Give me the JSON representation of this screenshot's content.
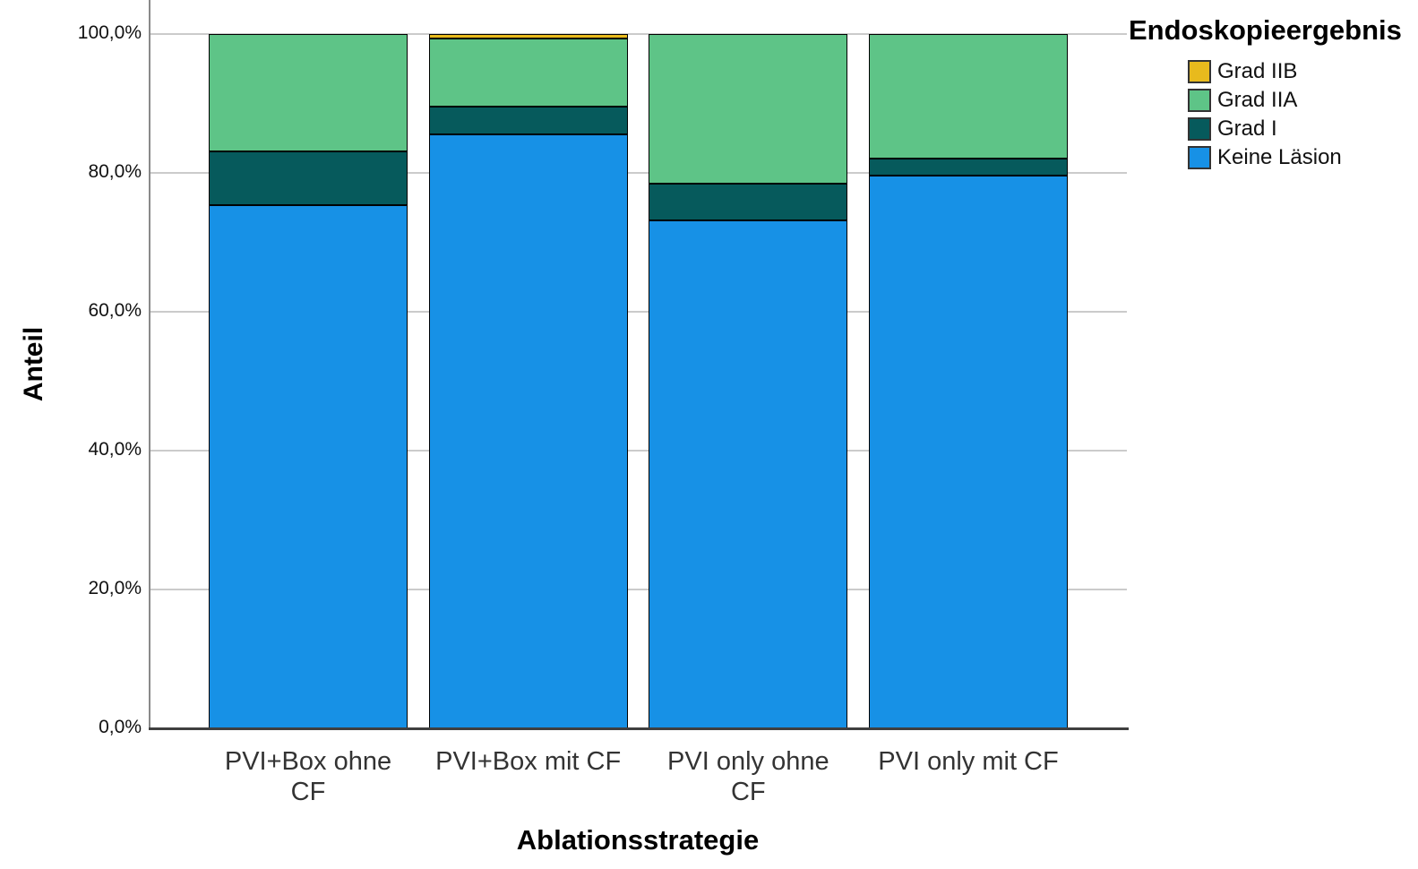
{
  "chart_data": {
    "type": "bar",
    "stacked": true,
    "title": "",
    "xlabel": "Ablationsstrategie",
    "ylabel": "Anteil",
    "ylim": [
      0,
      100
    ],
    "grid": "horizontal",
    "ytick_values": [
      0,
      20,
      40,
      60,
      80,
      100
    ],
    "ytick_labels": [
      "0,0%",
      "20,0%",
      "40,0%",
      "60,0%",
      "80,0%",
      "100,0%"
    ],
    "categories": [
      "PVI+Box ohne CF",
      "PVI+Box mit CF",
      "PVI only ohne CF",
      "PVI only mit CF"
    ],
    "series": [
      {
        "name": "Keine Läsion",
        "color": "#1791E6",
        "values": [
          75.4,
          85.6,
          73.1,
          79.6
        ]
      },
      {
        "name": "Grad I",
        "color": "#065A5C",
        "values": [
          7.7,
          4.0,
          5.3,
          2.5
        ]
      },
      {
        "name": "Grad IIA",
        "color": "#5EC487",
        "values": [
          16.9,
          9.8,
          21.6,
          17.9
        ]
      },
      {
        "name": "Grad IIB",
        "color": "#E8BA1D",
        "values": [
          0,
          0.6,
          0,
          0
        ]
      }
    ],
    "legend": {
      "title": "Endoskopieergebnis",
      "position": "top-right",
      "entries": [
        "Grad IIB",
        "Grad IIA",
        "Grad I",
        "Keine Läsion"
      ]
    }
  }
}
